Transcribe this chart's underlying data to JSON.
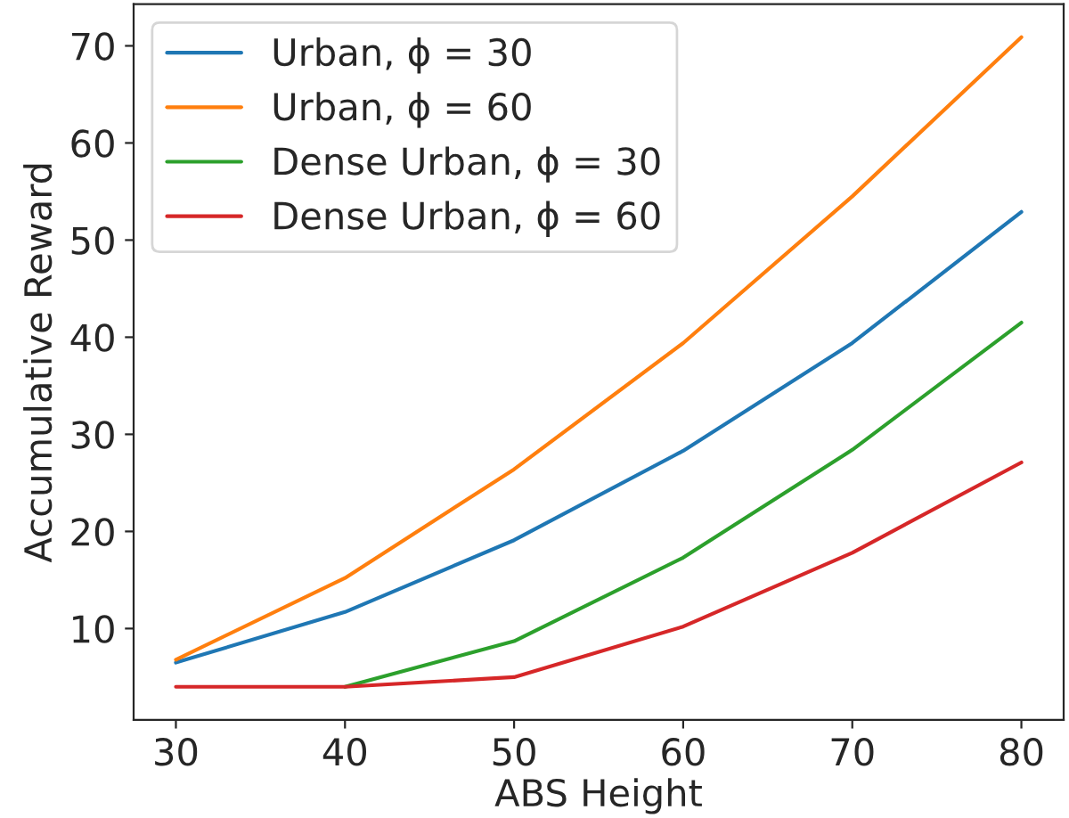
{
  "chart_data": {
    "type": "line",
    "xlabel": "ABS Height",
    "ylabel": "Accumulative Reward",
    "x": [
      30,
      40,
      50,
      60,
      70,
      80
    ],
    "series": [
      {
        "name": "Urban, ϕ = 30",
        "color": "#1f77b4",
        "values": [
          6.5,
          11.7,
          19.1,
          28.3,
          39.4,
          52.9
        ]
      },
      {
        "name": "Urban, ϕ = 60",
        "color": "#ff7f0e",
        "values": [
          6.8,
          15.2,
          26.4,
          39.4,
          54.5,
          70.9
        ]
      },
      {
        "name": "Dense Urban, ϕ = 30",
        "color": "#2ca02c",
        "values": [
          null,
          4.0,
          8.7,
          17.3,
          28.4,
          41.5
        ]
      },
      {
        "name": "Dense Urban, ϕ = 60",
        "color": "#d62728",
        "values": [
          4.0,
          4.0,
          5.0,
          10.2,
          17.8,
          27.1
        ]
      }
    ],
    "xlim": [
      27.5,
      82.5
    ],
    "ylim": [
      0.6,
      74.3
    ],
    "xticks": [
      30,
      40,
      50,
      60,
      70,
      80
    ],
    "yticks": [
      10,
      20,
      30,
      40,
      50,
      60,
      70
    ],
    "grid": false,
    "legend": "top left",
    "marker": "none",
    "line_style": "solid"
  }
}
